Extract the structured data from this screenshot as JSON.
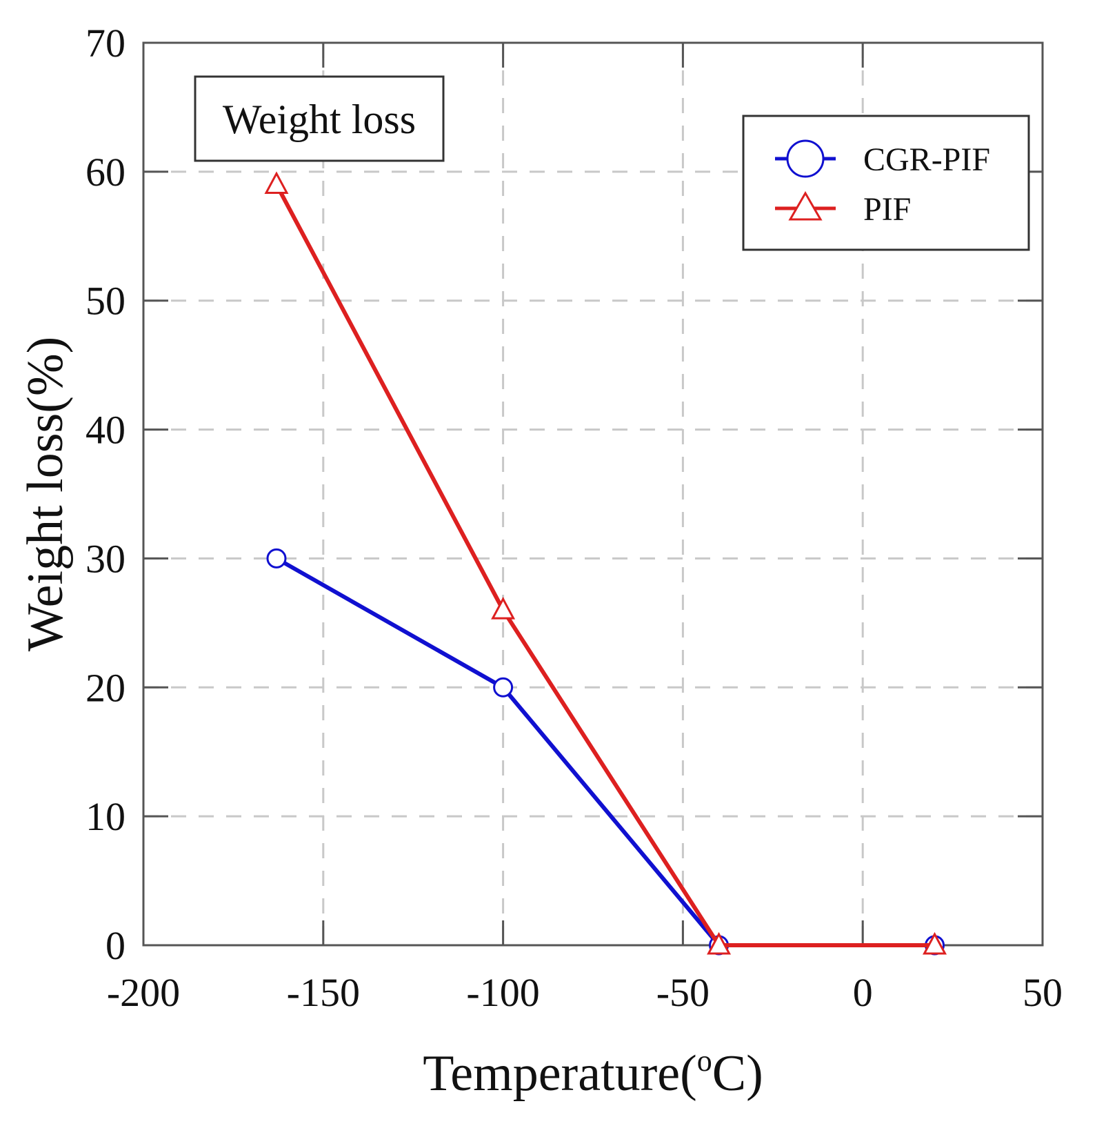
{
  "chart_data": {
    "type": "line",
    "title": "",
    "xlabel": "Temperature(",
    "xlabel_sup": "o",
    "xlabel_unit": "C)",
    "ylabel": "Weight loss(%)",
    "xlim": [
      -200,
      50
    ],
    "ylim": [
      0,
      70
    ],
    "xticks": [
      -200,
      -150,
      -100,
      -50,
      0,
      50
    ],
    "yticks": [
      0,
      10,
      20,
      30,
      40,
      50,
      60,
      70
    ],
    "grid": true,
    "annotation": "Weight loss",
    "legend_position": "top-right",
    "series": [
      {
        "name": "CGR-PIF",
        "color": "#1010d0",
        "marker": "circle",
        "x": [
          -163,
          -100,
          -40,
          20
        ],
        "y": [
          30,
          20,
          0,
          0
        ]
      },
      {
        "name": "PIF",
        "color": "#dd2020",
        "marker": "triangle",
        "x": [
          -163,
          -100,
          -40,
          20
        ],
        "y": [
          59,
          26,
          0,
          0
        ]
      }
    ]
  }
}
